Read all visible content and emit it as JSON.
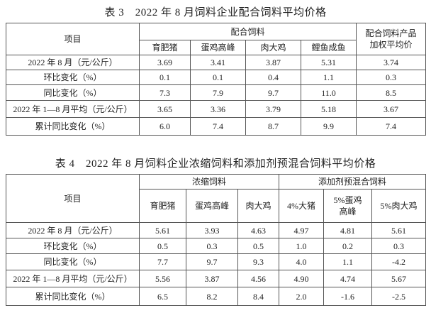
{
  "tables": [
    {
      "title": "表 3　2022 年 8 月饲料企业配合饲料平均价格",
      "item_header": "项目",
      "group_headers": [
        {
          "label": "配合饲料",
          "columns": [
            "育肥猪",
            "蛋鸡高峰",
            "肉大鸡",
            "鲤鱼成鱼"
          ]
        }
      ],
      "extra_header": "配合饲料产品加权平均价",
      "rows": [
        {
          "label": "2022 年 8 月（元/公斤）",
          "values": [
            "3.69",
            "3.41",
            "3.87",
            "5.31",
            "3.74"
          ]
        },
        {
          "label": "环比变化（%）",
          "values": [
            "0.1",
            "0.1",
            "0.4",
            "1.1",
            "0.3"
          ]
        },
        {
          "label": "同比变化（%）",
          "values": [
            "7.3",
            "7.9",
            "9.7",
            "11.0",
            "8.5"
          ]
        },
        {
          "label": "2022 年 1—8 月平均（元/公斤）",
          "values": [
            "3.65",
            "3.36",
            "3.79",
            "5.18",
            "3.67"
          ]
        },
        {
          "label": "累计同比变化（%）",
          "values": [
            "6.0",
            "7.4",
            "8.7",
            "9.9",
            "7.4"
          ]
        }
      ]
    },
    {
      "title": "表 4　2022 年 8 月饲料企业浓缩饲料和添加剂预混合饲料平均价格",
      "item_header": "项目",
      "group_headers": [
        {
          "label": "浓缩饲料",
          "columns": [
            "育肥猪",
            "蛋鸡高峰",
            "肉大鸡"
          ]
        },
        {
          "label": "添加剂预混合饲料",
          "columns": [
            "4%大猪",
            "5%蛋鸡高峰",
            "5%肉大鸡"
          ]
        }
      ],
      "rows": [
        {
          "label": "2022 年 8 月（元/公斤）",
          "values": [
            "5.61",
            "3.93",
            "4.63",
            "4.97",
            "4.81",
            "5.61"
          ]
        },
        {
          "label": "环比变化（%）",
          "values": [
            "0.5",
            "0.3",
            "0.5",
            "1.0",
            "0.2",
            "0.3"
          ]
        },
        {
          "label": "同比变化（%）",
          "values": [
            "7.7",
            "9.7",
            "9.3",
            "4.0",
            "1.1",
            "-4.2"
          ]
        },
        {
          "label": "2022 年 1—8 月平均（元/公斤）",
          "values": [
            "5.56",
            "3.87",
            "4.56",
            "4.90",
            "4.74",
            "5.67"
          ]
        },
        {
          "label": "累计同比变化（%）",
          "values": [
            "6.5",
            "8.2",
            "8.4",
            "2.0",
            "-1.6",
            "-2.5"
          ]
        }
      ]
    }
  ]
}
